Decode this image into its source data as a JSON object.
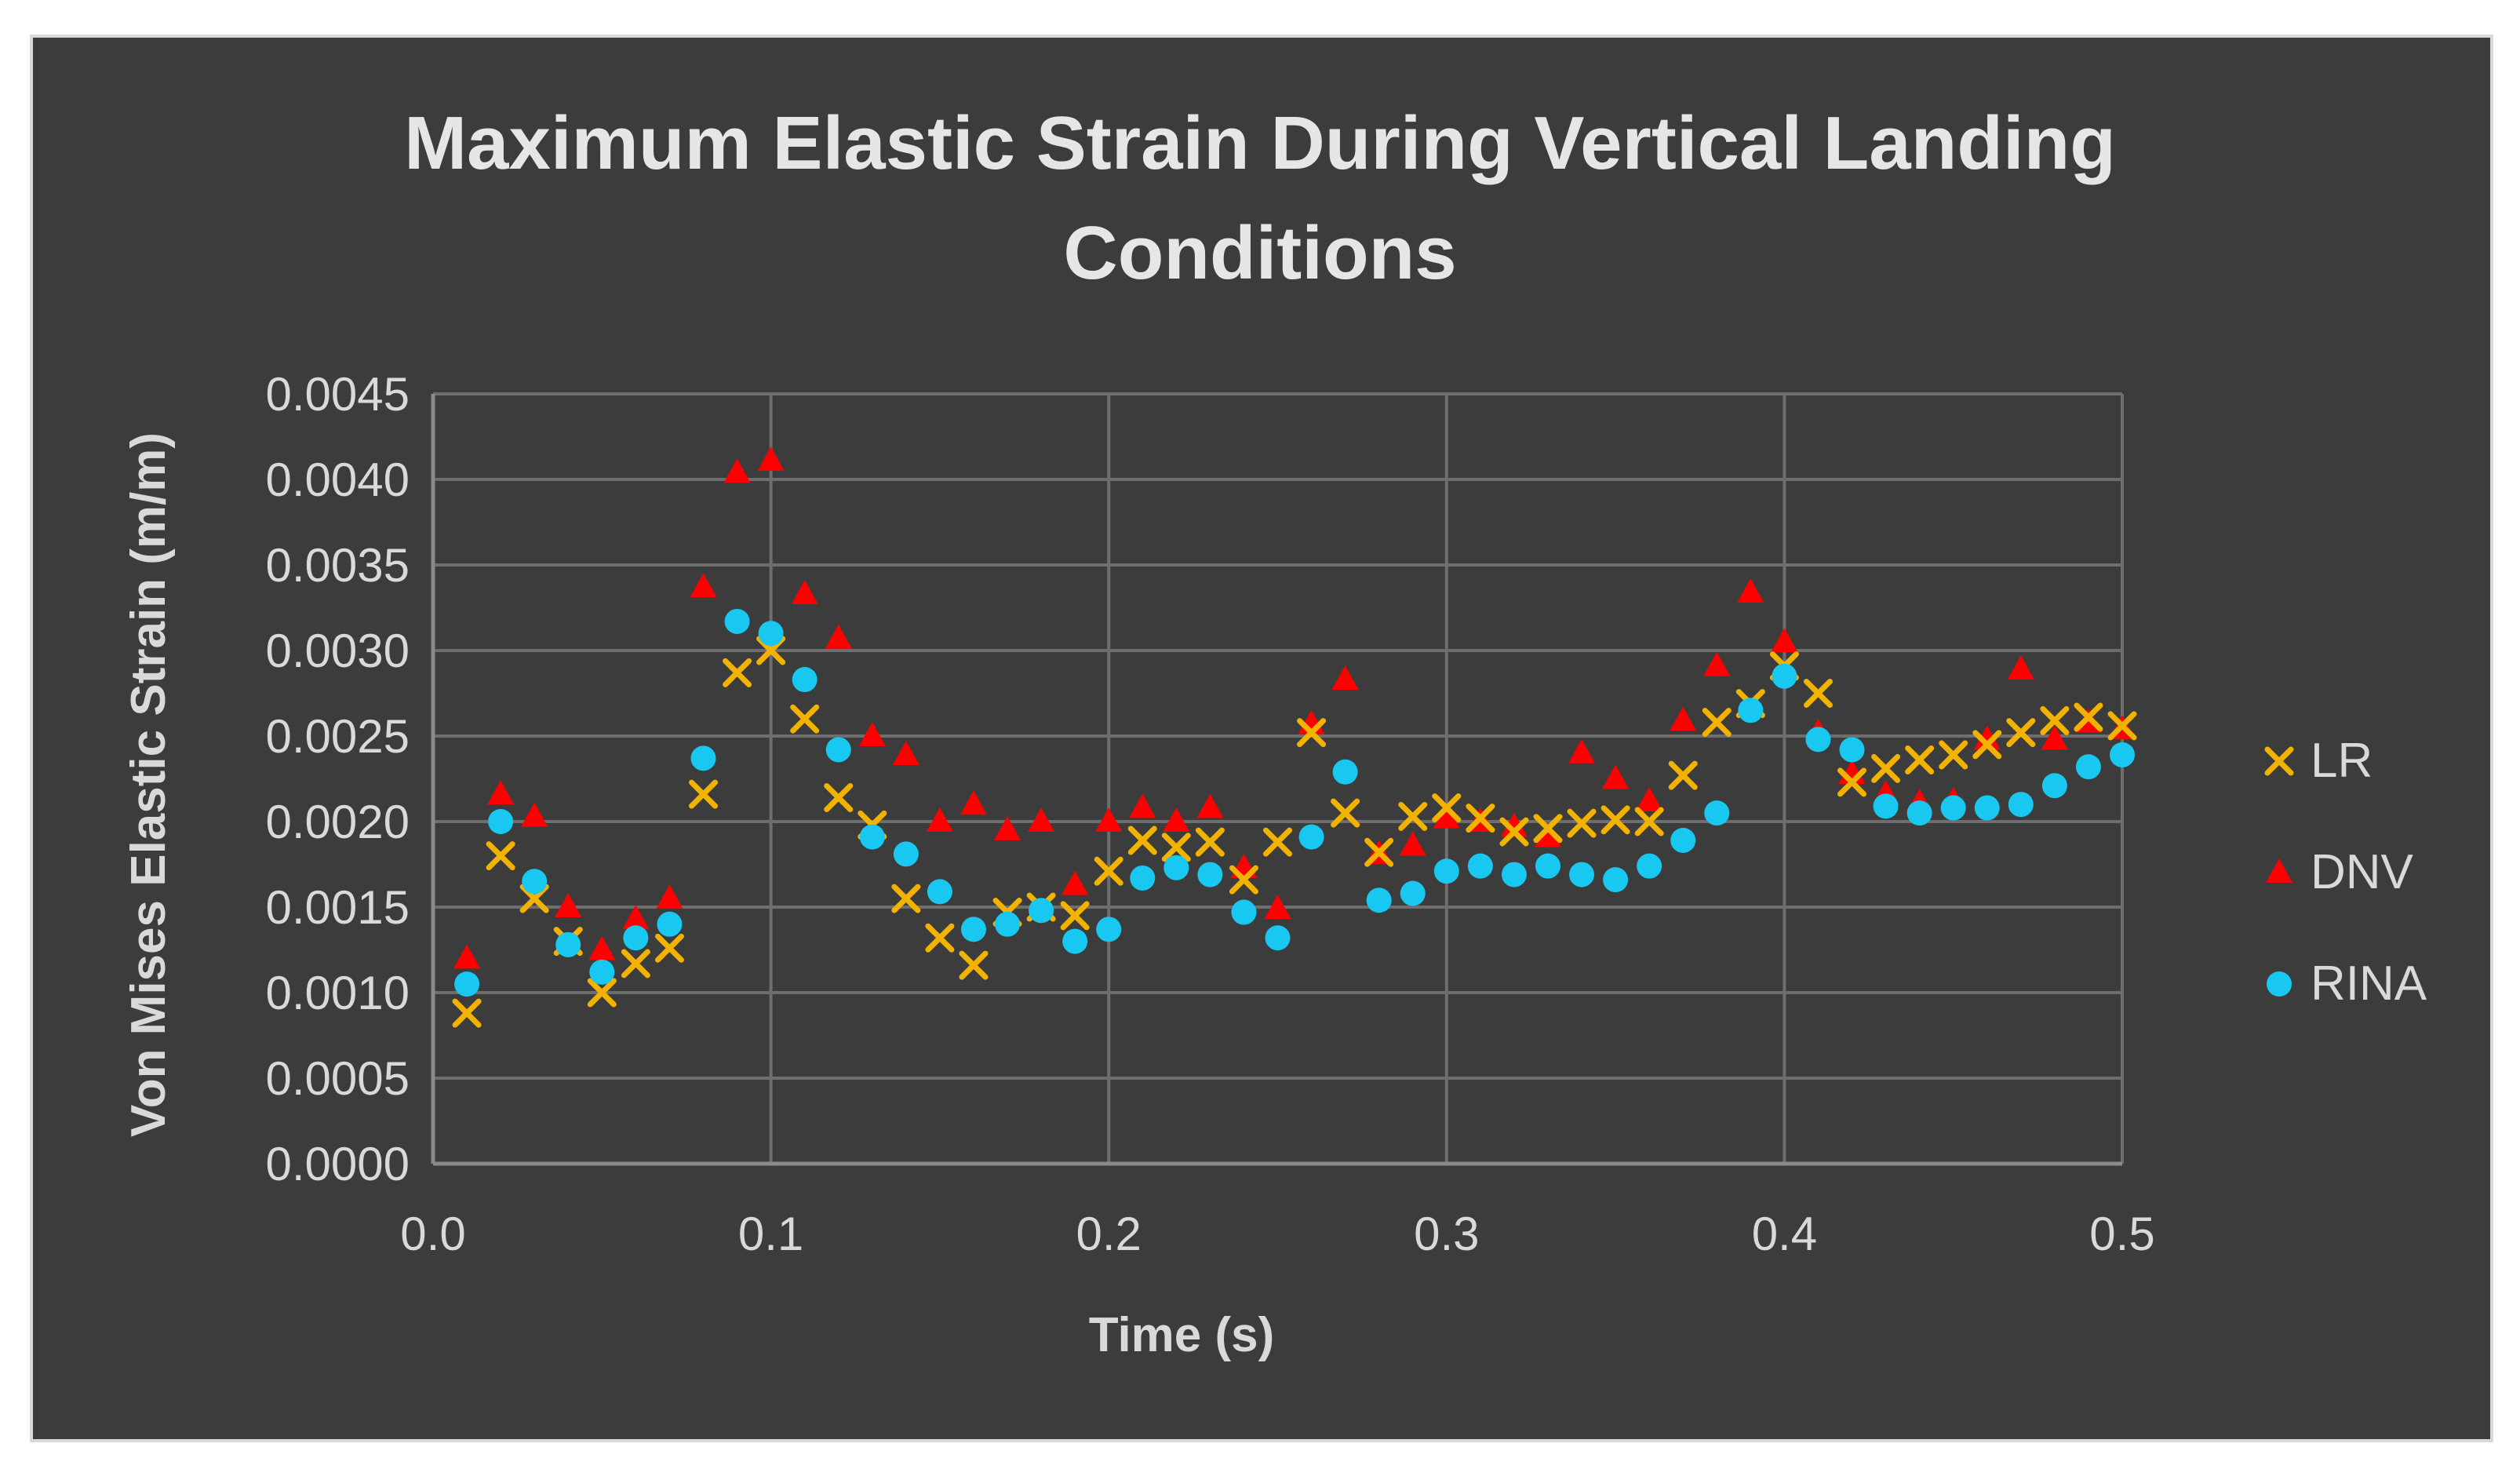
{
  "colors": {
    "background": "#3c3c3c",
    "grid": "#6e6e6e",
    "text": "#d9d9d9",
    "lr": "#f2b200",
    "dnv": "#ff0000",
    "rina": "#19c8f0"
  },
  "chart_data": {
    "type": "scatter",
    "title_lines": [
      "Maximum Elastic Strain During Vertical Landing",
      "Conditions"
    ],
    "xlabel": "Time (s)",
    "ylabel": "Von Mises Elastic Strain (m/m)",
    "xlim": [
      0,
      0.5
    ],
    "ylim": [
      0,
      0.0045
    ],
    "x_ticks": [
      "0.0",
      "0.1",
      "0.2",
      "0.3",
      "0.4",
      "0.5"
    ],
    "y_ticks": [
      "0.0000",
      "0.0005",
      "0.0010",
      "0.0015",
      "0.0020",
      "0.0025",
      "0.0030",
      "0.0035",
      "0.0040",
      "0.0045"
    ],
    "grid": true,
    "legend_position": "right",
    "x": [
      0.01,
      0.02,
      0.03,
      0.04,
      0.05,
      0.06,
      0.07,
      0.08,
      0.09,
      0.1,
      0.11,
      0.12,
      0.13,
      0.14,
      0.15,
      0.16,
      0.17,
      0.18,
      0.19,
      0.2,
      0.21,
      0.22,
      0.23,
      0.24,
      0.25,
      0.26,
      0.27,
      0.28,
      0.29,
      0.3,
      0.31,
      0.32,
      0.33,
      0.34,
      0.35,
      0.36,
      0.37,
      0.38,
      0.39,
      0.4,
      0.41,
      0.42,
      0.43,
      0.44,
      0.45,
      0.46,
      0.47,
      0.48,
      0.49,
      0.5
    ],
    "series": [
      {
        "name": "LR",
        "marker": "x",
        "color": "#f2b200",
        "values": [
          0.00088,
          0.0018,
          0.00155,
          0.0013,
          0.001,
          0.00117,
          0.00126,
          0.00216,
          0.00287,
          0.003,
          0.0026,
          0.00214,
          0.00198,
          0.00155,
          0.00132,
          0.00116,
          0.00147,
          0.0015,
          0.00145,
          0.00171,
          0.00189,
          0.00185,
          0.00188,
          0.00166,
          0.00188,
          0.00252,
          0.00205,
          0.00182,
          0.00203,
          0.00208,
          0.00202,
          0.00194,
          0.00196,
          0.00199,
          0.00201,
          0.002,
          0.00227,
          0.00258,
          0.00269,
          0.00291,
          0.00275,
          0.00223,
          0.00231,
          0.00236,
          0.00239,
          0.00245,
          0.00252,
          0.00259,
          0.00261,
          0.00256
        ]
      },
      {
        "name": "DNV",
        "marker": "triangle",
        "color": "#ff0000",
        "values": [
          0.0012,
          0.00216,
          0.00203,
          0.0015,
          0.00125,
          0.00143,
          0.00155,
          0.00337,
          0.00404,
          0.00411,
          0.00333,
          0.00307,
          0.0025,
          0.00239,
          0.002,
          0.0021,
          0.00195,
          0.002,
          0.00163,
          0.002,
          0.00208,
          0.002,
          0.00208,
          0.00173,
          0.00149,
          0.00257,
          0.00283,
          0.00181,
          0.00186,
          0.00202,
          0.002,
          0.00197,
          0.00191,
          0.0024,
          0.00225,
          0.00212,
          0.00259,
          0.00291,
          0.00334,
          0.00305,
          0.00252,
          0.00228,
          0.00216,
          0.00211,
          0.00212,
          0.00248,
          0.00289,
          0.00248,
          0.00258,
          0.00254
        ]
      },
      {
        "name": "RINA",
        "marker": "circle",
        "color": "#19c8f0",
        "values": [
          0.00105,
          0.002,
          0.00165,
          0.00128,
          0.00112,
          0.00132,
          0.0014,
          0.00237,
          0.00317,
          0.0031,
          0.00283,
          0.00242,
          0.00191,
          0.00181,
          0.00159,
          0.00137,
          0.0014,
          0.00148,
          0.0013,
          0.00137,
          0.00167,
          0.00173,
          0.00169,
          0.00147,
          0.00132,
          0.00191,
          0.00229,
          0.00154,
          0.00158,
          0.00171,
          0.00174,
          0.00169,
          0.00174,
          0.00169,
          0.00166,
          0.00174,
          0.00189,
          0.00205,
          0.00265,
          0.00285,
          0.00248,
          0.00242,
          0.00209,
          0.00205,
          0.00208,
          0.00208,
          0.0021,
          0.00221,
          0.00232,
          0.00239
        ]
      }
    ]
  }
}
